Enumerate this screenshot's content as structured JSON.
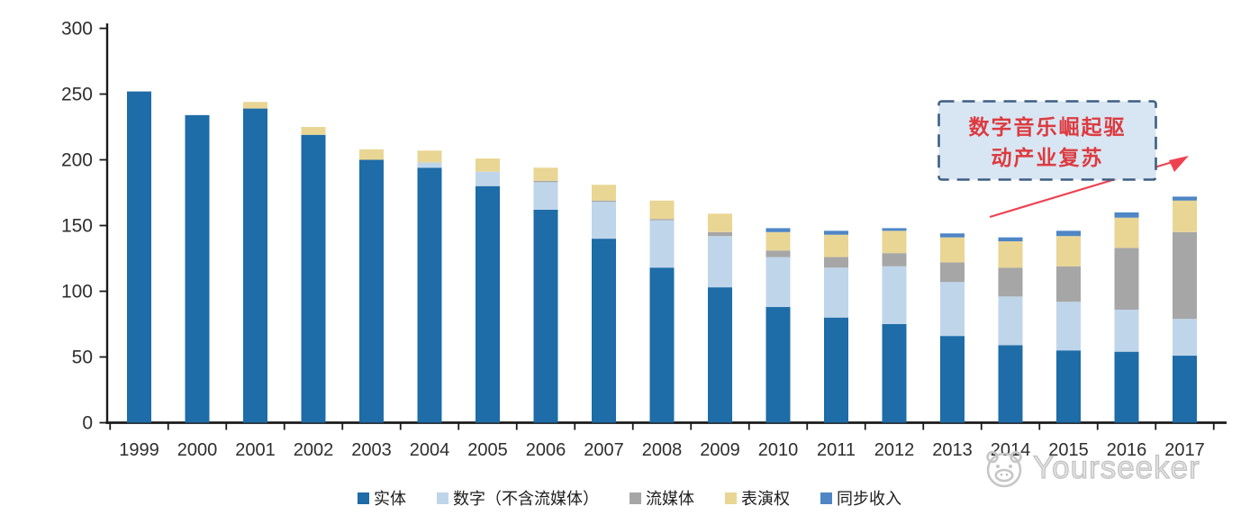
{
  "chart_data": {
    "type": "bar",
    "stacked": true,
    "title": "",
    "xlabel": "",
    "ylabel": "",
    "categories": [
      "1999",
      "2000",
      "2001",
      "2002",
      "2003",
      "2004",
      "2005",
      "2006",
      "2007",
      "2008",
      "2009",
      "2010",
      "2011",
      "2012",
      "2013",
      "2014",
      "2015",
      "2016",
      "2017"
    ],
    "series": [
      {
        "key": "physical",
        "name": "实体",
        "color": "#1E6CA8",
        "values": [
          252,
          234,
          239,
          219,
          200,
          194,
          180,
          162,
          140,
          118,
          103,
          88,
          80,
          75,
          66,
          59,
          55,
          54,
          51
        ]
      },
      {
        "key": "digital-excl-streaming",
        "name": "数字（不含流媒体）",
        "color": "#BFD5EA",
        "values": [
          0,
          0,
          0,
          0,
          0,
          4,
          11,
          21,
          28,
          36,
          39,
          38,
          38,
          44,
          41,
          37,
          37,
          32,
          28
        ]
      },
      {
        "key": "streaming",
        "name": "流媒体",
        "color": "#A6A6A6",
        "values": [
          0,
          0,
          0,
          0,
          0,
          0,
          0,
          1,
          1,
          1,
          3,
          5,
          8,
          10,
          15,
          22,
          27,
          47,
          66
        ]
      },
      {
        "key": "performance-rights",
        "name": "表演权",
        "color": "#E9D694",
        "values": [
          0,
          0,
          5,
          6,
          8,
          9,
          10,
          10,
          12,
          14,
          14,
          14,
          17,
          17,
          19,
          20,
          23,
          23,
          24
        ]
      },
      {
        "key": "sync-revenue",
        "name": "同步收入",
        "color": "#4E86C6",
        "values": [
          0,
          0,
          0,
          0,
          0,
          0,
          0,
          0,
          0,
          0,
          0,
          3,
          3,
          2,
          3,
          3,
          4,
          4,
          3
        ]
      }
    ],
    "ylim": [
      0,
      300
    ],
    "yticks": [
      0,
      50,
      100,
      150,
      200,
      250,
      300
    ],
    "grid": false,
    "legend_position": "bottom",
    "annotation": {
      "line1": "数字音乐崛起驱",
      "line2": "动产业复苏",
      "text_color": "#DD3A3F",
      "box_fill": "#D8E6F3",
      "box_border": "#3D5E83",
      "arrow_color": "#EE4251"
    }
  },
  "watermark": {
    "text": "Yourseeker",
    "icon": "animal-face-icon"
  }
}
